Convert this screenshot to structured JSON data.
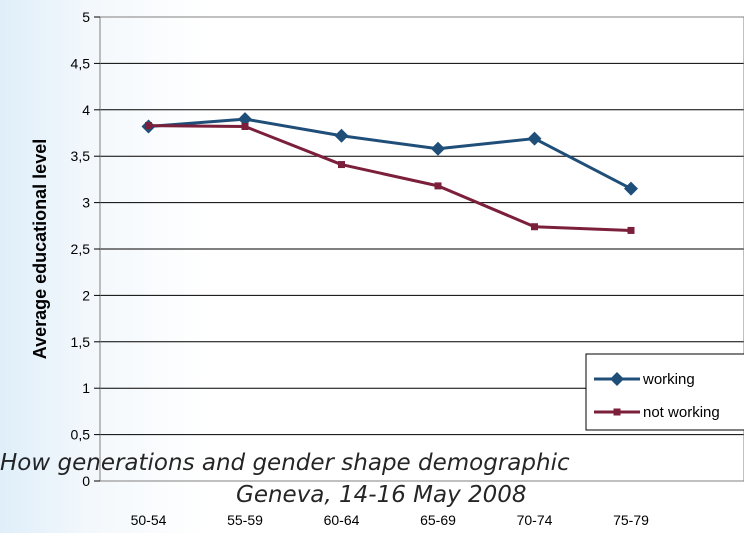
{
  "chart_data": {
    "type": "line",
    "title": "",
    "xlabel": "",
    "ylabel": "Average educational level",
    "categories": [
      "50-54",
      "55-59",
      "60-64",
      "65-69",
      "70-74",
      "75-79"
    ],
    "ylim": [
      0,
      5
    ],
    "yticks": [
      "0",
      "0,5",
      "1",
      "1,5",
      "2",
      "2,5",
      "3",
      "3,5",
      "4",
      "4,5",
      "5"
    ],
    "grid": "horizontal",
    "legend_position": "right",
    "series": [
      {
        "name": "working",
        "values": [
          3.82,
          3.9,
          3.72,
          3.58,
          3.69,
          3.15
        ],
        "color": "#1f4e79",
        "marker": "diamond"
      },
      {
        "name": "not working",
        "values": [
          3.83,
          3.82,
          3.41,
          3.18,
          2.74,
          2.7
        ],
        "color": "#7b1f3a",
        "marker": "square"
      }
    ]
  },
  "footer": {
    "line1": "How generations and gender shape demographic",
    "line2": "Geneva, 14-16 May 2008"
  }
}
